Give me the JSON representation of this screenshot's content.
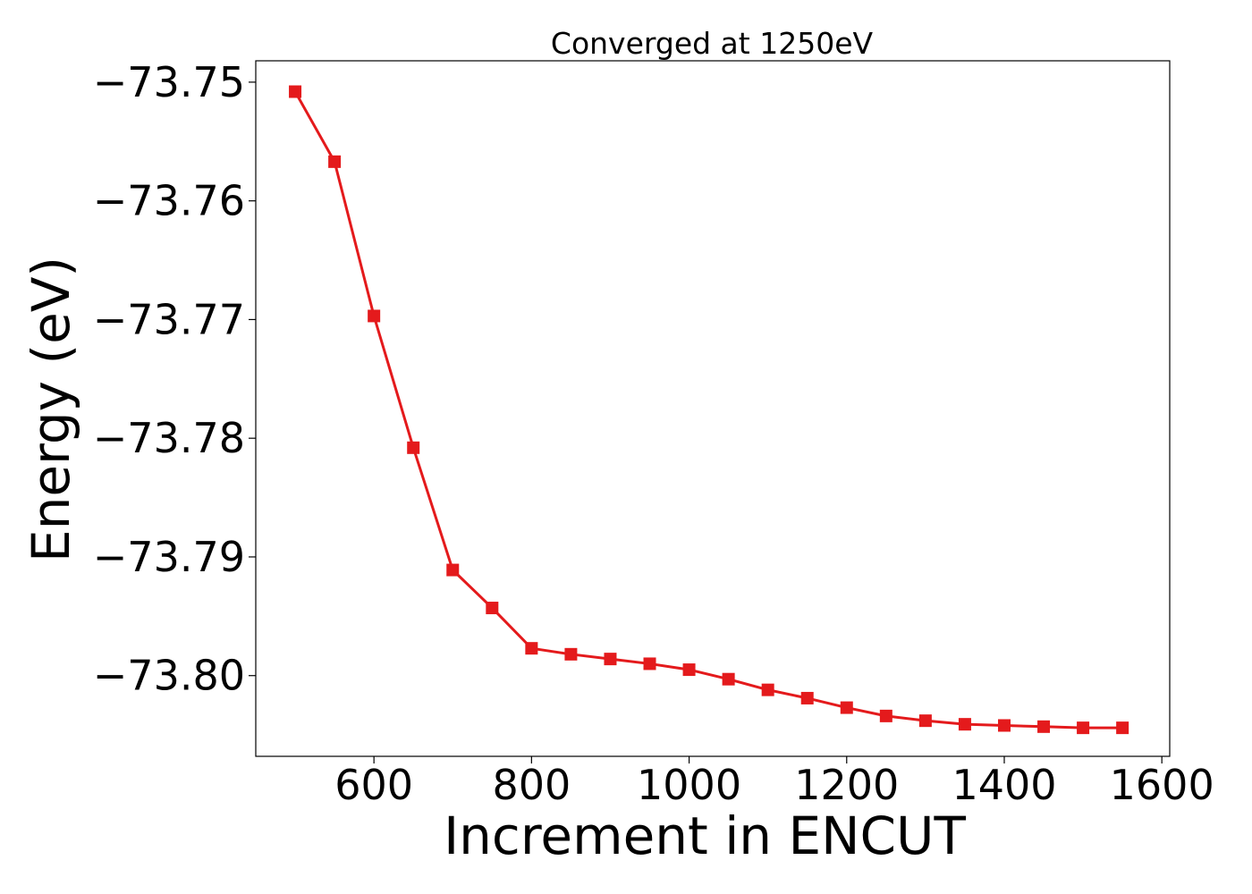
{
  "chart_data": {
    "type": "line",
    "title": "Converged at 1250eV",
    "xlabel": "Increment in ENCUT",
    "ylabel": "Energy (eV)",
    "xlim": [
      450,
      1610
    ],
    "ylim": [
      -73.8068,
      -73.7482
    ],
    "x_ticks": [
      600,
      800,
      1000,
      1200,
      1400,
      1600
    ],
    "y_ticks": [
      -73.75,
      -73.76,
      -73.77,
      -73.78,
      -73.79,
      -73.8
    ],
    "x_tick_labels": [
      "600",
      "800",
      "1000",
      "1200",
      "1400",
      "1600"
    ],
    "y_tick_labels": [
      "−73.75",
      "−73.76",
      "−73.77",
      "−73.78",
      "−73.79",
      "−73.80"
    ],
    "grid": false,
    "legend": "none",
    "color": "#e41a1c",
    "marker": "square",
    "series": [
      {
        "x": [
          500,
          550,
          600,
          650,
          700,
          750,
          800,
          850,
          900,
          950,
          1000,
          1050,
          1100,
          1150,
          1200,
          1250,
          1300,
          1350,
          1400,
          1450,
          1500,
          1550
        ],
        "y": [
          -73.7508,
          -73.7567,
          -73.7697,
          -73.7808,
          -73.7911,
          -73.7943,
          -73.7977,
          -73.7982,
          -73.7986,
          -73.799,
          -73.7995,
          -73.8003,
          -73.8012,
          -73.8019,
          -73.8027,
          -73.8034,
          -73.8038,
          -73.8041,
          -73.8042,
          -73.8043,
          -73.8044,
          -73.8044
        ]
      }
    ]
  }
}
